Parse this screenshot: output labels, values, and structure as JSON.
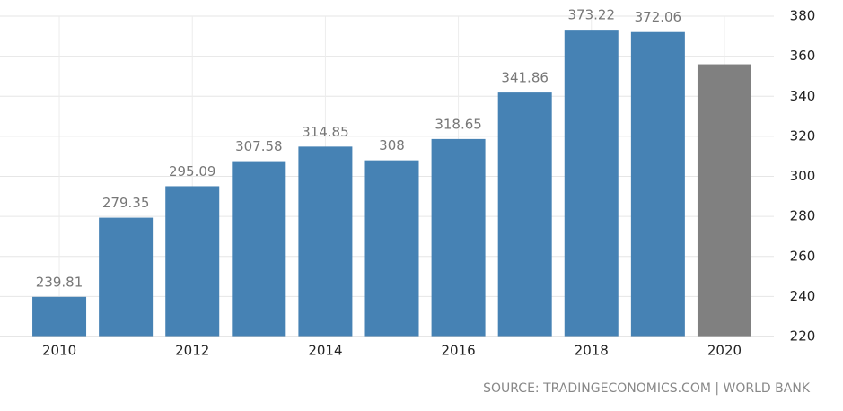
{
  "chart_data": {
    "type": "bar",
    "categories": [
      "2010",
      null,
      "2012",
      null,
      "2014",
      null,
      "2016",
      null,
      "2018",
      null,
      "2020"
    ],
    "values": [
      239.81,
      279.35,
      295.09,
      307.58,
      314.85,
      308,
      318.65,
      341.86,
      373.22,
      372.06,
      356
    ],
    "value_labels": [
      "239.81",
      "279.35",
      "295.09",
      "307.58",
      "314.85",
      "308",
      "318.65",
      "341.86",
      "373.22",
      "372.06",
      null
    ],
    "colors": [
      "#4682b4",
      "#4682b4",
      "#4682b4",
      "#4682b4",
      "#4682b4",
      "#4682b4",
      "#4682b4",
      "#4682b4",
      "#4682b4",
      "#4682b4",
      "#808080"
    ],
    "ylim": [
      220,
      380
    ],
    "yticks": [
      220,
      240,
      260,
      280,
      300,
      320,
      340,
      360,
      380
    ],
    "grid": true,
    "source": "SOURCE: TRADINGECONOMICS.COM | WORLD BANK"
  }
}
